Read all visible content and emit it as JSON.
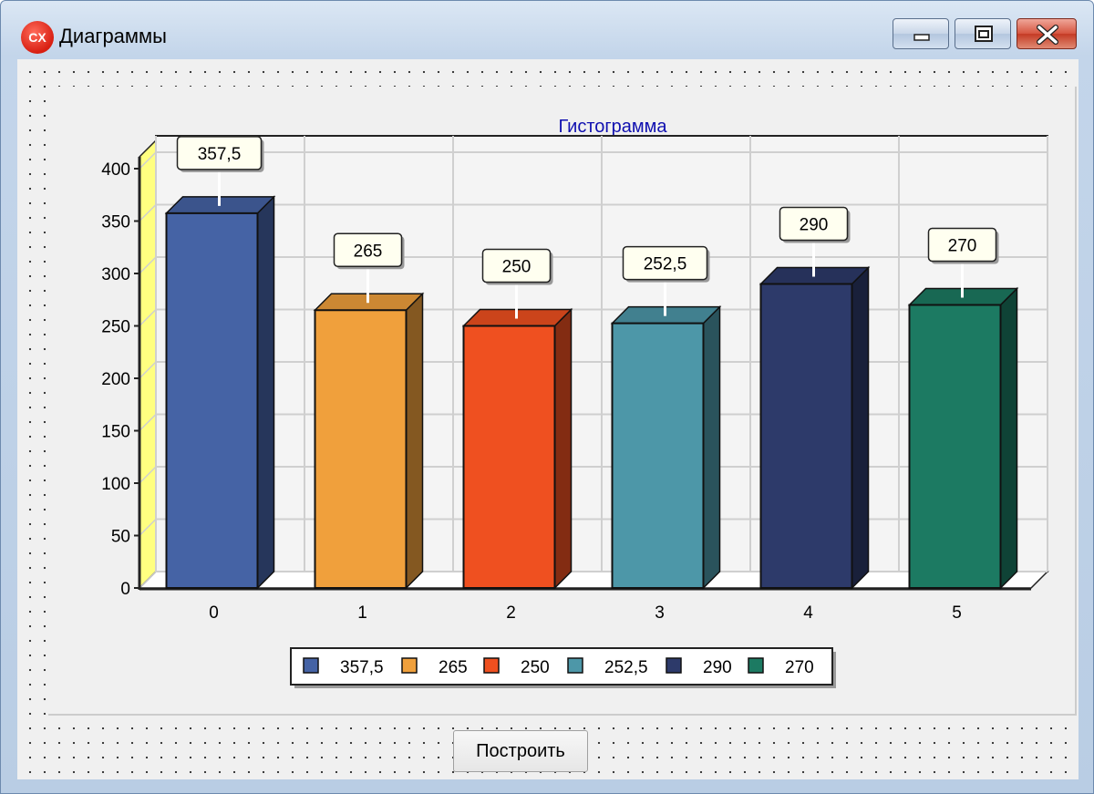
{
  "window": {
    "title": "Диаграммы",
    "icon_text": "CX"
  },
  "chart_data": {
    "type": "bar",
    "title": "Гистограмма",
    "categories": [
      "0",
      "1",
      "2",
      "3",
      "4",
      "5"
    ],
    "values": [
      357.5,
      265,
      250,
      252.5,
      290,
      270
    ],
    "data_labels": [
      "357,5",
      "265",
      "250",
      "252,5",
      "290",
      "270"
    ],
    "y_ticks": [
      "0",
      "50",
      "100",
      "150",
      "200",
      "250",
      "300",
      "350",
      "400"
    ],
    "ylim": [
      0,
      400
    ],
    "grid": true,
    "three_d": true,
    "legend_position": "bottom",
    "legend": [
      "357,5",
      "265",
      "250",
      "252,5",
      "290",
      "270"
    ],
    "colors": [
      "#4563a5",
      "#f0a03c",
      "#ef5020",
      "#4d97a8",
      "#2d3a6a",
      "#1c7a62"
    ],
    "title_color": "#1010b0"
  },
  "buttons": {
    "build": "Построить"
  }
}
